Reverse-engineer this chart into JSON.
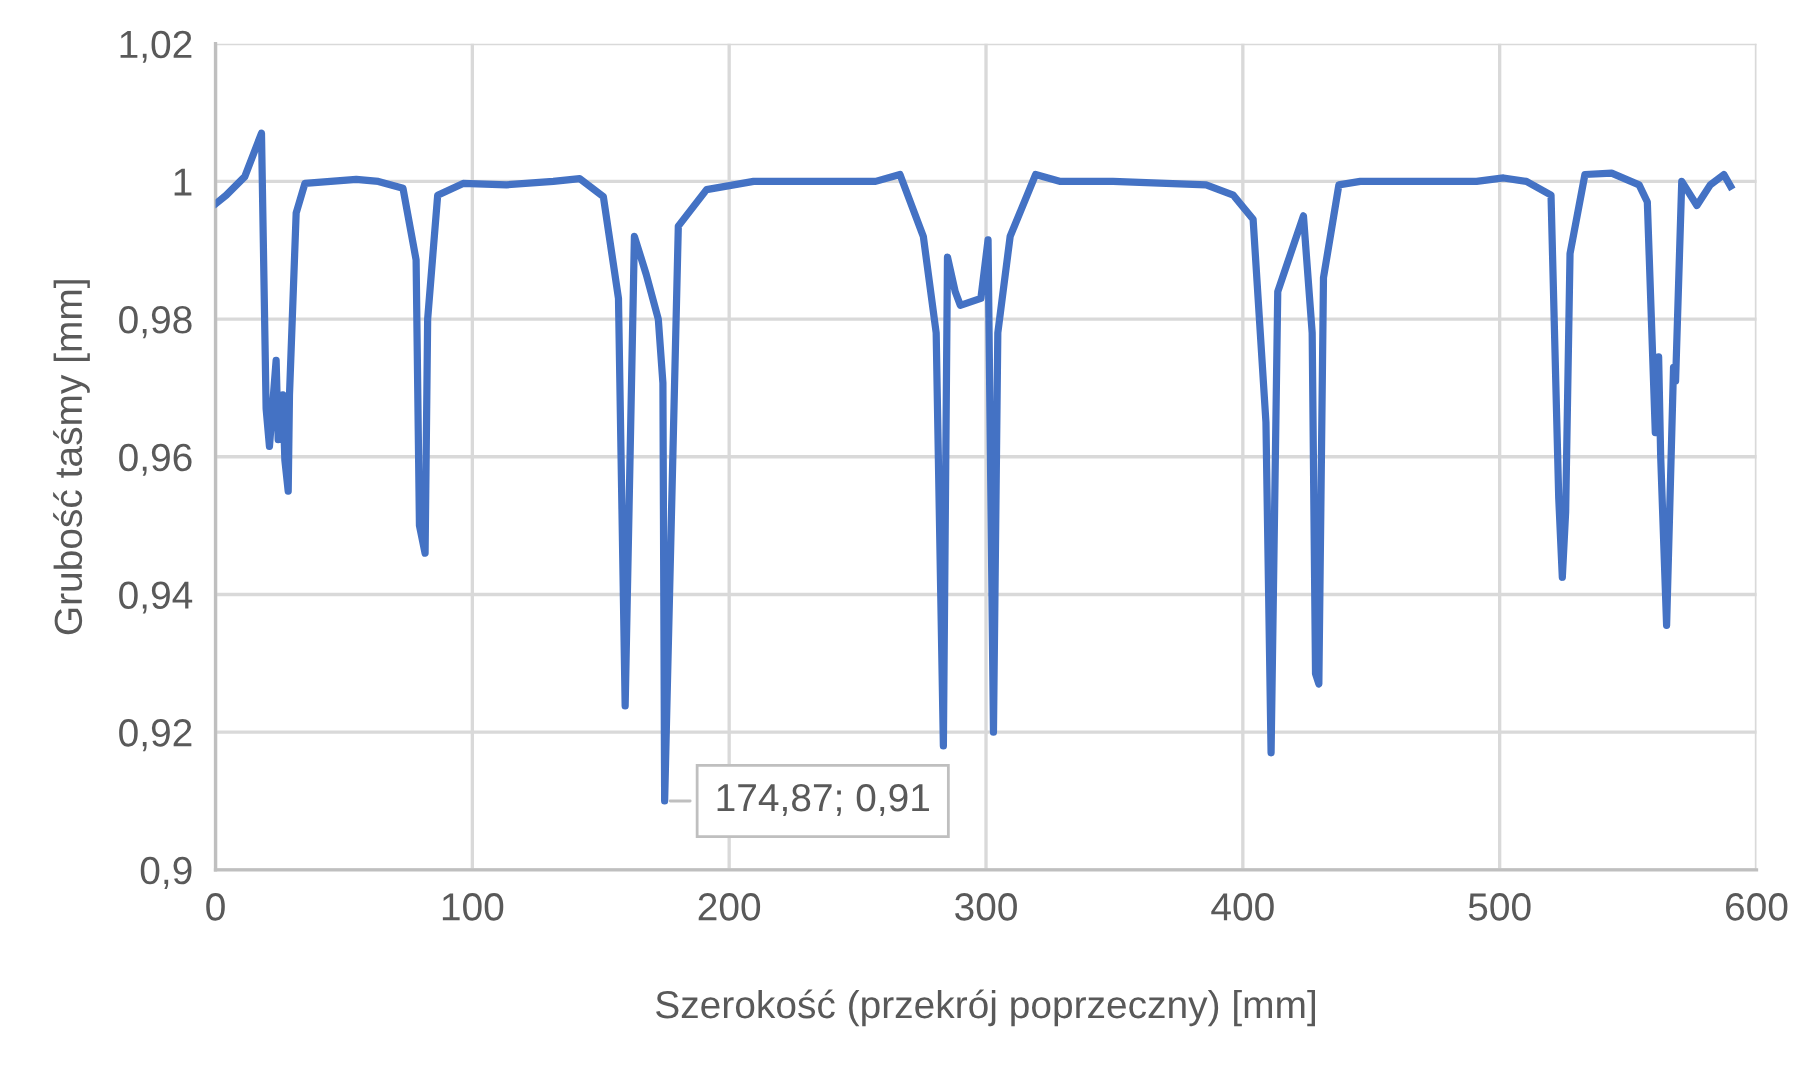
{
  "chart_data": {
    "type": "line",
    "xlabel": "Szerokość (przekrój poprzeczny) [mm]",
    "ylabel": "Grubość taśmy [mm]",
    "xlim": [
      0,
      600
    ],
    "xticks": [
      0,
      100,
      200,
      300,
      400,
      500,
      600
    ],
    "ylim": [
      0.9,
      1.02
    ],
    "yticks": [
      {
        "value": 0.9,
        "label": "0,9"
      },
      {
        "value": 0.92,
        "label": "0,92"
      },
      {
        "value": 0.94,
        "label": "0,94"
      },
      {
        "value": 0.96,
        "label": "0,96"
      },
      {
        "value": 0.98,
        "label": "0,98"
      },
      {
        "value": 1.0,
        "label": "1"
      },
      {
        "value": 1.02,
        "label": "1,02"
      }
    ],
    "grid": true,
    "legend": false,
    "marker": "none",
    "line_style": "solid",
    "annotations": [
      {
        "text": "174,87; 0,91",
        "x": 174.87,
        "y": 0.91
      }
    ],
    "series": [
      {
        "color": "#4472c4",
        "x": [
          0.2,
          4.2,
          11.4,
          17.9,
          19.7,
          21,
          23.6,
          24.4,
          26.2,
          27,
          28.3,
          28.8,
          31.4,
          34.8,
          54.8,
          63.4,
          73,
          78.1,
          79.4,
          81.6,
          82.6,
          86.5,
          96.4,
          113.3,
          131.5,
          141.8,
          151,
          156.9,
          159.5,
          163.1,
          167.7,
          172.4,
          174.2,
          174.87,
          180.2,
          191.2,
          209.5,
          257,
          266.5,
          275.6,
          280.6,
          283.4,
          285,
          288,
          290,
          298,
          300.8,
          302.9,
          304.6,
          309.4,
          319.3,
          329,
          349.4,
          385.7,
          396.3,
          404,
          409,
          411,
          413.6,
          423.6,
          427,
          428.3,
          429.6,
          431.4,
          437.4,
          445.7,
          466.5,
          491,
          501.5,
          510.4,
          520,
          523,
          524.4,
          525.7,
          527.4,
          533.2,
          543.6,
          554.3,
          557.5,
          560.6,
          561.9,
          562.7,
          565,
          567.7,
          568.5,
          570.9,
          576.8,
          582,
          587.3,
          589.9
        ],
        "values": [
          0.9968,
          0.998,
          1.0007,
          1.007,
          0.967,
          0.9615,
          0.974,
          0.9625,
          0.969,
          0.9595,
          0.955,
          0.969,
          0.9954,
          0.9997,
          1.0003,
          1.0,
          0.999,
          0.9886,
          0.95,
          0.946,
          0.98,
          0.998,
          0.9997,
          0.9995,
          1.0,
          1.0004,
          0.9978,
          0.983,
          0.9238,
          0.992,
          0.9865,
          0.98,
          0.9707,
          0.91,
          0.9935,
          0.9988,
          1.0,
          1.0,
          1.001,
          0.992,
          0.978,
          0.918,
          0.989,
          0.984,
          0.982,
          0.983,
          0.9915,
          0.92,
          0.978,
          0.992,
          1.001,
          1.0,
          1.0,
          0.9995,
          0.998,
          0.9945,
          0.965,
          0.917,
          0.984,
          0.995,
          0.978,
          0.9285,
          0.927,
          0.986,
          0.9995,
          1.0,
          1.0,
          1.0,
          1.0005,
          1.0,
          0.998,
          0.954,
          0.9425,
          0.952,
          0.9895,
          1.001,
          1.0012,
          0.9995,
          0.997,
          0.9635,
          0.9745,
          0.96,
          0.9355,
          0.973,
          0.971,
          1.0,
          0.9965,
          0.9995,
          1.001,
          0.9993
        ]
      }
    ]
  }
}
